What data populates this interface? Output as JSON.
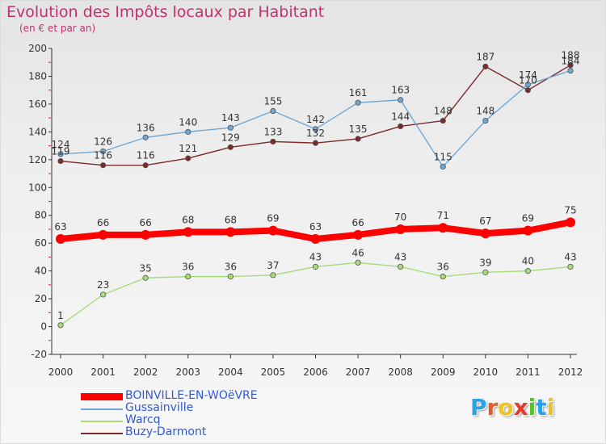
{
  "title": "Evolution des Impôts locaux par Habitant",
  "subtitle": "(en € et par an)",
  "chart_data": {
    "type": "line",
    "x": [
      "2000",
      "2001",
      "2002",
      "2003",
      "2004",
      "2005",
      "2006",
      "2007",
      "2008",
      "2009",
      "2010",
      "2011",
      "2012"
    ],
    "ylim": [
      -20,
      200
    ],
    "yticks": [
      -20,
      0,
      20,
      40,
      60,
      80,
      100,
      120,
      140,
      160,
      180,
      200
    ],
    "grid": false,
    "legend_position": "bottom-left",
    "series": [
      {
        "name": "BOINVILLE-EN-WOëVRE",
        "color": "#ff0000",
        "values": [
          63,
          66,
          66,
          68,
          68,
          69,
          63,
          66,
          70,
          71,
          67,
          69,
          75
        ]
      },
      {
        "name": "Gussainville",
        "color": "#6fa7d4",
        "values": [
          124,
          126,
          136,
          140,
          143,
          155,
          142,
          161,
          163,
          115,
          148,
          174,
          184
        ]
      },
      {
        "name": "Warcq",
        "color": "#a6dc7a",
        "values": [
          1,
          23,
          35,
          36,
          36,
          37,
          43,
          46,
          43,
          36,
          39,
          40,
          43
        ]
      },
      {
        "name": "Buzy-Darmont",
        "color": "#7a2a2a",
        "values": [
          119,
          116,
          116,
          121,
          129,
          133,
          132,
          135,
          144,
          148,
          187,
          170,
          188
        ]
      }
    ]
  },
  "logo": {
    "letters": [
      "P",
      "r",
      "o",
      "x",
      "i",
      "t",
      "i"
    ],
    "colors": [
      "#2aa1e8",
      "#e65a2b",
      "#f2c21c",
      "#e63a2b",
      "#57c02c",
      "#2aa1e8",
      "#f2c21c"
    ]
  }
}
